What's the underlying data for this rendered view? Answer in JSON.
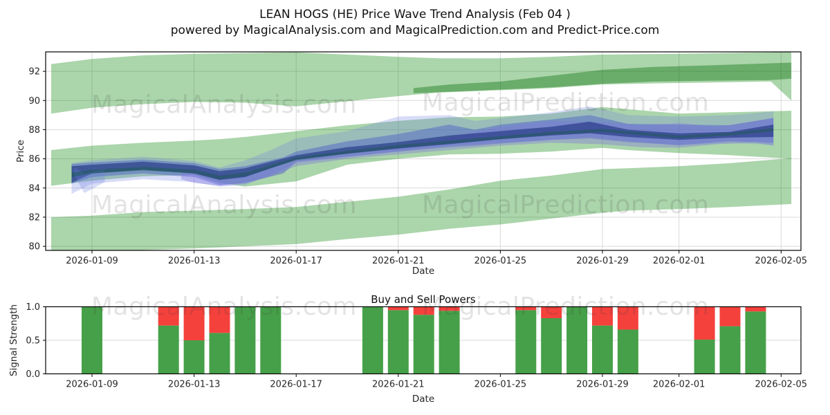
{
  "title": "LEAN HOGS (HE) Price Wave Trend Analysis (Feb 04 )",
  "subtitle": "powered by MagicalAnalysis.com and MagicalPrediction.com and Predict-Price.com",
  "watermarks": {
    "left_text": "MagicalAnalysis.com",
    "right_text": "MagicalPrediction.com"
  },
  "colors": {
    "band_green": "rgba(0,128,0,0.33)",
    "band_green_dark": "rgba(0,105,0,0.38)",
    "bar_buy_green": "#46a049",
    "bar_sell_red": "#f5413c",
    "blue_light": "rgba(110,130,225,0.28)",
    "blue_medium": "rgba(72,92,200,0.45)",
    "blue_dark": "rgba(28,48,125,0.60)",
    "blue_purple": "rgba(125,115,220,0.38)",
    "teal_accent": "rgba(18,92,62,0.40)",
    "grid": "#d9d9d9",
    "spine": "#000000"
  },
  "chart_data": [
    {
      "type": "area",
      "name": "price-wave-trend",
      "ylabel": "Price",
      "xlabel": "Date",
      "ylim": [
        79.7,
        93.35
      ],
      "y_ticks": [
        80,
        82,
        84,
        86,
        88,
        90,
        92
      ],
      "x_axis_start_date": "2026-01-07",
      "x_tick_labels": [
        "2026-01-09",
        "2026-01-13",
        "2026-01-17",
        "2026-01-21",
        "2026-01-25",
        "2026-01-29",
        "2026-02-01",
        "2026-02-05"
      ],
      "x_tick_days": [
        2,
        6,
        10,
        14,
        18,
        22,
        25,
        29
      ],
      "grid": "both",
      "bands": [
        {
          "name": "upper-forecast-band",
          "color_key": "band_green",
          "points": [
            [
              0.4,
              92.5,
              89.1
            ],
            [
              2,
              92.85,
              89.5
            ],
            [
              4,
              93.1,
              89.75
            ],
            [
              6,
              93.2,
              89.9
            ],
            [
              8,
              93.25,
              89.85
            ],
            [
              10,
              93.3,
              89.6
            ],
            [
              12,
              93.15,
              89.95
            ],
            [
              14,
              93.0,
              90.3
            ],
            [
              15.6,
              92.9,
              90.55
            ],
            [
              18,
              92.9,
              90.7
            ],
            [
              20,
              93.0,
              90.85
            ],
            [
              22,
              93.15,
              91.1
            ],
            [
              25,
              93.2,
              91.2
            ],
            [
              28.6,
              93.3,
              91.3
            ],
            [
              29.4,
              93.4,
              90.0
            ]
          ]
        },
        {
          "name": "upper-forecast-core-band",
          "color_key": "band_green_dark",
          "points": [
            [
              14.6,
              90.85,
              90.5
            ],
            [
              16,
              91.1,
              90.6
            ],
            [
              18,
              91.3,
              90.75
            ],
            [
              20,
              91.7,
              90.9
            ],
            [
              22,
              92.1,
              91.15
            ],
            [
              24,
              92.3,
              91.3
            ],
            [
              26,
              92.4,
              91.35
            ],
            [
              28.6,
              92.55,
              91.4
            ],
            [
              29.4,
              92.6,
              91.5
            ]
          ]
        },
        {
          "name": "middle-forecast-band",
          "color_key": "band_green",
          "points": [
            [
              0.4,
              86.6,
              84.15
            ],
            [
              2,
              86.9,
              84.5
            ],
            [
              4,
              87.1,
              84.8
            ],
            [
              6,
              87.25,
              84.9
            ],
            [
              7,
              87.35,
              84.35
            ],
            [
              8,
              87.5,
              84.1
            ],
            [
              10,
              87.9,
              84.45
            ],
            [
              12,
              88.3,
              85.6
            ],
            [
              14,
              88.6,
              86.0
            ],
            [
              16,
              88.85,
              86.3
            ],
            [
              18,
              88.9,
              86.35
            ],
            [
              20,
              89.1,
              86.5
            ],
            [
              22,
              89.55,
              86.75
            ],
            [
              23,
              89.4,
              86.6
            ],
            [
              25,
              89.1,
              86.4
            ],
            [
              27,
              89.2,
              86.25
            ],
            [
              29.4,
              89.3,
              86.0
            ]
          ]
        },
        {
          "name": "lower-forecast-band",
          "color_key": "band_green",
          "points": [
            [
              0.4,
              82.0,
              79.55
            ],
            [
              2,
              82.1,
              79.6
            ],
            [
              4,
              82.35,
              79.75
            ],
            [
              6,
              82.45,
              79.85
            ],
            [
              8,
              82.55,
              80.0
            ],
            [
              10,
              82.7,
              80.15
            ],
            [
              12,
              83.05,
              80.5
            ],
            [
              14,
              83.4,
              80.8
            ],
            [
              16,
              83.9,
              81.2
            ],
            [
              18,
              84.5,
              81.5
            ],
            [
              20,
              84.85,
              81.9
            ],
            [
              22,
              85.3,
              82.3
            ],
            [
              23,
              85.35,
              82.45
            ],
            [
              25,
              85.5,
              82.55
            ],
            [
              27,
              85.7,
              82.7
            ],
            [
              29.4,
              86.05,
              82.9
            ]
          ]
        },
        {
          "name": "price-wave-light-band",
          "color_key": "blue_light",
          "points": [
            [
              1.2,
              85.7,
              83.6
            ],
            [
              2,
              85.9,
              84.3
            ],
            [
              4,
              86.15,
              84.6
            ],
            [
              6,
              85.85,
              84.4
            ],
            [
              7,
              85.4,
              84.1
            ],
            [
              8,
              85.9,
              84.2
            ],
            [
              9,
              86.6,
              84.9
            ],
            [
              10,
              87.4,
              85.7
            ],
            [
              12,
              87.9,
              86.1
            ],
            [
              14,
              88.9,
              86.5
            ],
            [
              16,
              89.0,
              86.9
            ],
            [
              17,
              88.6,
              87.0
            ],
            [
              18,
              88.8,
              87.1
            ],
            [
              20,
              89.2,
              87.3
            ],
            [
              21.5,
              89.6,
              87.5
            ],
            [
              23,
              89.0,
              87.2
            ],
            [
              25,
              88.9,
              86.9
            ],
            [
              27,
              89.0,
              87.1
            ],
            [
              28.7,
              89.25,
              86.95
            ]
          ]
        },
        {
          "name": "price-wave-medium-band",
          "color_key": "blue_medium",
          "points": [
            [
              1.2,
              85.65,
              84.3
            ],
            [
              2,
              85.75,
              84.75
            ],
            [
              4,
              85.95,
              85.0
            ],
            [
              6,
              85.7,
              84.75
            ],
            [
              7,
              85.3,
              84.2
            ],
            [
              8,
              85.5,
              84.35
            ],
            [
              9.5,
              86.1,
              85.0
            ],
            [
              10,
              86.5,
              85.8
            ],
            [
              12,
              87.2,
              86.15
            ],
            [
              14,
              87.7,
              86.5
            ],
            [
              16,
              88.35,
              86.8
            ],
            [
              17,
              88.0,
              86.9
            ],
            [
              18,
              88.35,
              87.05
            ],
            [
              20,
              88.7,
              87.3
            ],
            [
              21.5,
              89.0,
              87.4
            ],
            [
              23,
              88.4,
              87.15
            ],
            [
              25,
              88.35,
              86.95
            ],
            [
              27,
              88.3,
              87.2
            ],
            [
              28.7,
              88.8,
              87.1
            ]
          ]
        },
        {
          "name": "price-wave-purple-band",
          "color_key": "blue_purple",
          "points": [
            [
              5.5,
              85.3,
              84.6
            ],
            [
              6,
              85.2,
              84.35
            ],
            [
              7,
              84.9,
              84.15
            ],
            [
              8,
              85.0,
              84.3
            ],
            [
              9,
              85.5,
              84.8
            ],
            [
              10,
              86.1,
              85.5
            ],
            [
              12,
              86.5,
              86.0
            ],
            [
              14,
              86.9,
              86.3
            ],
            [
              16,
              87.5,
              86.6
            ],
            [
              18,
              88.2,
              86.9
            ],
            [
              20,
              88.6,
              87.1
            ],
            [
              22,
              88.5,
              87.0
            ],
            [
              23.5,
              88.3,
              86.8
            ],
            [
              25,
              88.45,
              86.75
            ],
            [
              26.5,
              88.2,
              87.0
            ],
            [
              28,
              88.6,
              87.1
            ],
            [
              28.7,
              88.8,
              86.9
            ]
          ]
        },
        {
          "name": "price-wave-dark-core",
          "color_key": "blue_dark",
          "points": [
            [
              1.2,
              85.5,
              84.35
            ],
            [
              2,
              85.6,
              85.0
            ],
            [
              4,
              85.8,
              85.25
            ],
            [
              6,
              85.55,
              85.0
            ],
            [
              7,
              85.15,
              84.55
            ],
            [
              8,
              85.35,
              84.75
            ],
            [
              10,
              86.25,
              85.95
            ],
            [
              12,
              86.8,
              86.35
            ],
            [
              14,
              87.15,
              86.7
            ],
            [
              16,
              87.6,
              87.0
            ],
            [
              18,
              87.9,
              87.35
            ],
            [
              20,
              88.2,
              87.6
            ],
            [
              21.5,
              88.55,
              87.75
            ],
            [
              23,
              88.0,
              87.5
            ],
            [
              25,
              87.75,
              87.3
            ],
            [
              27,
              87.85,
              87.45
            ],
            [
              28.7,
              88.35,
              87.5
            ]
          ]
        },
        {
          "name": "price-wave-start-fan",
          "color_key": "blue_light",
          "points": [
            [
              1.3,
              85.4,
              84.9
            ],
            [
              1.7,
              85.0,
              83.65
            ],
            [
              2.5,
              85.3,
              84.4
            ]
          ]
        },
        {
          "name": "price-wave-teal-accent",
          "color_key": "teal_accent",
          "points": [
            [
              1.2,
              85.05,
              84.75
            ],
            [
              2,
              85.25,
              85.0
            ],
            [
              4,
              85.45,
              85.2
            ],
            [
              6,
              85.25,
              85.0
            ],
            [
              7,
              84.85,
              84.6
            ],
            [
              8,
              85.05,
              84.8
            ],
            [
              10,
              86.1,
              85.9
            ],
            [
              12,
              86.55,
              86.35
            ],
            [
              14,
              86.95,
              86.75
            ],
            [
              16,
              87.25,
              87.05
            ],
            [
              18,
              87.55,
              87.35
            ],
            [
              20,
              87.85,
              87.65
            ],
            [
              22,
              88.05,
              87.85
            ],
            [
              25,
              87.6,
              87.4
            ],
            [
              27,
              87.8,
              87.6
            ],
            [
              28.7,
              88.1,
              87.9
            ]
          ]
        }
      ]
    },
    {
      "type": "bar",
      "name": "buy-sell-powers",
      "title": "Buy and Sell Powers",
      "ylabel": "Signal Strength",
      "xlabel": "Date",
      "ylim": [
        0,
        1
      ],
      "y_tick_labels": [
        "0.0",
        "0.5",
        "1.0"
      ],
      "y_tick_values": [
        0,
        0.5,
        1
      ],
      "x_tick_labels": [
        "2026-01-09",
        "2026-01-13",
        "2026-01-17",
        "2026-01-21",
        "2026-01-25",
        "2026-01-29",
        "2026-02-01",
        "2026-02-05"
      ],
      "x_tick_days": [
        2,
        6,
        10,
        14,
        18,
        22,
        25,
        29
      ],
      "grid": "horizontal-0.5",
      "series": [
        {
          "name": "Buy",
          "color_key": "bar_buy_green"
        },
        {
          "name": "Sell",
          "color_key": "bar_sell_red"
        }
      ],
      "bars": [
        {
          "date": "2026-01-09",
          "day": 2,
          "buy": 1.0,
          "sell": 0.0
        },
        {
          "date": "2026-01-12",
          "day": 5,
          "buy": 0.72,
          "sell": 0.28
        },
        {
          "date": "2026-01-13",
          "day": 6,
          "buy": 0.5,
          "sell": 0.5
        },
        {
          "date": "2026-01-14",
          "day": 7,
          "buy": 0.61,
          "sell": 0.39
        },
        {
          "date": "2026-01-15",
          "day": 8,
          "buy": 1.0,
          "sell": 0.0
        },
        {
          "date": "2026-01-16",
          "day": 9,
          "buy": 1.0,
          "sell": 0.0
        },
        {
          "date": "2026-01-20",
          "day": 13,
          "buy": 1.0,
          "sell": 0.0
        },
        {
          "date": "2026-01-21",
          "day": 14,
          "buy": 0.95,
          "sell": 0.05
        },
        {
          "date": "2026-01-22",
          "day": 15,
          "buy": 0.88,
          "sell": 0.12
        },
        {
          "date": "2026-01-23",
          "day": 16,
          "buy": 0.94,
          "sell": 0.06
        },
        {
          "date": "2026-01-26",
          "day": 19,
          "buy": 0.95,
          "sell": 0.05
        },
        {
          "date": "2026-01-27",
          "day": 20,
          "buy": 0.83,
          "sell": 0.17
        },
        {
          "date": "2026-01-28",
          "day": 21,
          "buy": 1.0,
          "sell": 0.0
        },
        {
          "date": "2026-01-29",
          "day": 22,
          "buy": 0.72,
          "sell": 0.28
        },
        {
          "date": "2026-01-30",
          "day": 23,
          "buy": 0.66,
          "sell": 0.34
        },
        {
          "date": "2026-02-02",
          "day": 26,
          "buy": 0.51,
          "sell": 0.49
        },
        {
          "date": "2026-02-03",
          "day": 27,
          "buy": 0.71,
          "sell": 0.29
        },
        {
          "date": "2026-02-04",
          "day": 28,
          "buy": 0.93,
          "sell": 0.07
        }
      ]
    }
  ]
}
